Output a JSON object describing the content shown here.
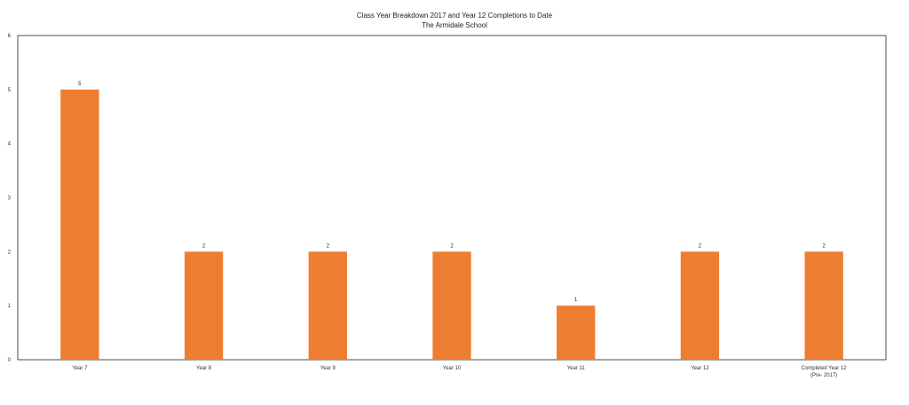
{
  "chart_data": {
    "type": "bar",
    "title": "Class Year Breakdown 2017 and Year 12 Completions to Date",
    "subtitle": "The Armidale School",
    "xlabel": "",
    "ylabel": "",
    "categories": [
      "Year 7",
      "Year 8",
      "Year 9",
      "Year 10",
      "Year 11",
      "Year 12",
      "Completed Year 12\n(Pre- 2017)"
    ],
    "values": [
      5,
      2,
      2,
      2,
      1,
      2,
      2
    ],
    "data_labels": [
      "5",
      "2",
      "2",
      "2",
      "1",
      "2",
      "2"
    ],
    "ylim": [
      0,
      6
    ],
    "yticks": [
      0,
      1,
      2,
      3,
      4,
      5,
      6
    ],
    "grid": false,
    "legend": "none",
    "bar_color": "#ED7D31"
  }
}
